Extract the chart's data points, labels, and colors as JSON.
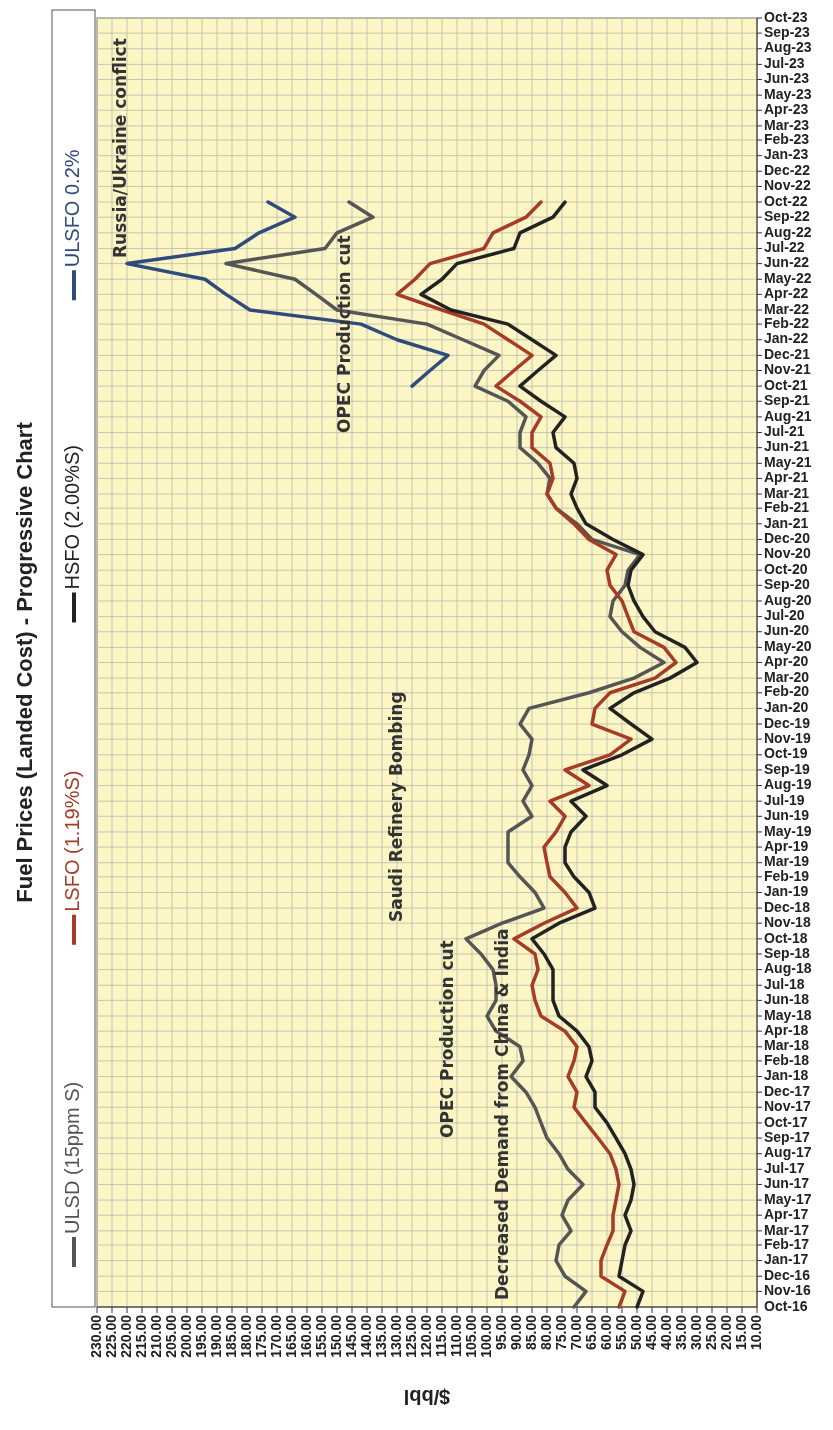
{
  "chart_data": {
    "type": "line",
    "title": "Fuel Prices (Landed Cost) - Progressive Chart",
    "x": [
      "2016-10",
      "2016-11",
      "2016-12",
      "2017-01",
      "2017-02",
      "2017-03",
      "2017-04",
      "2017-05",
      "2017-06",
      "2017-07",
      "2017-08",
      "2017-09",
      "2017-10",
      "2017-11",
      "2017-12",
      "2018-01",
      "2018-02",
      "2018-03",
      "2018-04",
      "2018-05",
      "2018-06",
      "2018-07",
      "2018-08",
      "2018-09",
      "2018-10",
      "2018-11",
      "2018-12",
      "2019-01",
      "2019-02",
      "2019-03",
      "2019-04",
      "2019-05",
      "2019-06",
      "2019-07",
      "2019-08",
      "2019-09",
      "2019-10",
      "2019-11",
      "2019-12",
      "2020-01",
      "2020-02",
      "2020-03",
      "2020-04",
      "2020-05",
      "2020-06",
      "2020-07",
      "2020-08",
      "2020-09",
      "2020-10",
      "2020-11",
      "2020-12",
      "2021-01",
      "2021-02",
      "2021-03",
      "2021-04",
      "2021-05",
      "2021-06",
      "2021-07",
      "2021-08",
      "2021-09",
      "2021-10",
      "2021-11",
      "2021-12",
      "2022-01",
      "2022-02",
      "2022-03",
      "2022-04",
      "2022-05",
      "2022-06",
      "2022-07",
      "2022-08",
      "2022-09",
      "2022-10"
    ],
    "series": [
      {
        "name": "ULSD (15ppm S)",
        "color": "#555555",
        "values": [
          71,
          67,
          74,
          77,
          76,
          72,
          75,
          73,
          68,
          73,
          76,
          80,
          82,
          84,
          87,
          92,
          88,
          89,
          97,
          100,
          97,
          97,
          98,
          102,
          107,
          95,
          81,
          84,
          89,
          93,
          93,
          93,
          85,
          88,
          85,
          88,
          86,
          85,
          89,
          86,
          66,
          51,
          41,
          49,
          55,
          59,
          58,
          54,
          53,
          49,
          65,
          70,
          77,
          80,
          79,
          83,
          89,
          89,
          87,
          93,
          104,
          101,
          96,
          108,
          120,
          150,
          157,
          164,
          187,
          154,
          150,
          138,
          146
        ]
      },
      {
        "name": "LSFO (1.19%S)",
        "color": "#a63b27",
        "values": [
          56,
          54,
          62,
          62,
          60,
          58,
          58,
          57,
          56,
          57,
          59,
          63,
          67,
          71,
          70,
          73,
          71,
          70,
          74,
          82,
          84,
          85,
          83,
          84,
          91,
          81,
          70,
          74,
          79,
          80,
          81,
          77,
          74,
          79,
          66,
          74,
          59,
          52,
          65,
          64,
          59,
          44,
          37,
          41,
          51,
          53,
          55,
          59,
          60,
          57,
          66,
          71,
          77,
          80,
          78,
          79,
          85,
          85,
          82,
          89,
          97,
          91,
          85,
          93,
          101,
          115,
          130,
          124,
          119,
          101,
          98,
          87,
          82
        ]
      },
      {
        "name": "HSFO (2.00%S)",
        "color": "#222222",
        "values": [
          50,
          48,
          56,
          55,
          54,
          52,
          54,
          52,
          51,
          52,
          54,
          57,
          60,
          64,
          64,
          67,
          65,
          66,
          70,
          76,
          78,
          78,
          78,
          81,
          85,
          76,
          64,
          66,
          71,
          74,
          74,
          72,
          67,
          72,
          60,
          68,
          55,
          45,
          52,
          59,
          51,
          39,
          30,
          34,
          44,
          48,
          51,
          53,
          52,
          48,
          58,
          67,
          70,
          72,
          70,
          71,
          77,
          78,
          74,
          82,
          89,
          83,
          77,
          85,
          93,
          112,
          122,
          115,
          110,
          91,
          89,
          78,
          74
        ]
      },
      {
        "name": "ULSFO 0.2%",
        "color": "#2f4b7c",
        "x": [
          "2021-10",
          "2021-11",
          "2021-12",
          "2022-01",
          "2022-02",
          "2022-03",
          "2022-04",
          "2022-05",
          "2022-06",
          "2022-07",
          "2022-08",
          "2022-09",
          "2022-10"
        ],
        "values": [
          125,
          119,
          113,
          130,
          142,
          179,
          187,
          194,
          220,
          184,
          176,
          164,
          173
        ]
      }
    ],
    "orientation": "horizontal",
    "xlabel": "$/bbl",
    "ylim": [
      "2016-10",
      "2023-10"
    ],
    "yticks": [
      {
        "value": "2016-10",
        "label": "Oct-16"
      },
      {
        "value": "2016-11",
        "label": "Nov-16"
      },
      {
        "value": "2016-12",
        "label": "Dec-16"
      },
      {
        "value": "2017-01",
        "label": "Jan-17"
      },
      {
        "value": "2017-02",
        "label": "Feb-17"
      },
      {
        "value": "2017-03",
        "label": "Mar-17"
      },
      {
        "value": "2017-04",
        "label": "Apr-17"
      },
      {
        "value": "2017-05",
        "label": "May-17"
      },
      {
        "value": "2017-06",
        "label": "Jun-17"
      },
      {
        "value": "2017-07",
        "label": "Jul-17"
      },
      {
        "value": "2017-08",
        "label": "Aug-17"
      },
      {
        "value": "2017-09",
        "label": "Sep-17"
      },
      {
        "value": "2017-10",
        "label": "Oct-17"
      },
      {
        "value": "2017-11",
        "label": "Nov-17"
      },
      {
        "value": "2017-12",
        "label": "Dec-17"
      },
      {
        "value": "2018-01",
        "label": "Jan-18"
      },
      {
        "value": "2018-02",
        "label": "Feb-18"
      },
      {
        "value": "2018-03",
        "label": "Mar-18"
      },
      {
        "value": "2018-04",
        "label": "Apr-18"
      },
      {
        "value": "2018-05",
        "label": "May-18"
      },
      {
        "value": "2018-06",
        "label": "Jun-18"
      },
      {
        "value": "2018-07",
        "label": "Jul-18"
      },
      {
        "value": "2018-08",
        "label": "Aug-18"
      },
      {
        "value": "2018-09",
        "label": "Sep-18"
      },
      {
        "value": "2018-10",
        "label": "Oct-18"
      },
      {
        "value": "2018-11",
        "label": "Nov-18"
      },
      {
        "value": "2018-12",
        "label": "Dec-18"
      },
      {
        "value": "2019-01",
        "label": "Jan-19"
      },
      {
        "value": "2019-02",
        "label": "Feb-19"
      },
      {
        "value": "2019-03",
        "label": "Mar-19"
      },
      {
        "value": "2019-04",
        "label": "Apr-19"
      },
      {
        "value": "2019-05",
        "label": "May-19"
      },
      {
        "value": "2019-06",
        "label": "Jun-19"
      },
      {
        "value": "2019-07",
        "label": "Jul-19"
      },
      {
        "value": "2019-08",
        "label": "Aug-19"
      },
      {
        "value": "2019-09",
        "label": "Sep-19"
      },
      {
        "value": "2019-10",
        "label": "Oct-19"
      },
      {
        "value": "2019-11",
        "label": "Nov-19"
      },
      {
        "value": "2019-12",
        "label": "Dec-19"
      },
      {
        "value": "2020-01",
        "label": "Jan-20"
      },
      {
        "value": "2020-02",
        "label": "Feb-20"
      },
      {
        "value": "2020-03",
        "label": "Mar-20"
      },
      {
        "value": "2020-04",
        "label": "Apr-20"
      },
      {
        "value": "2020-05",
        "label": "May-20"
      },
      {
        "value": "2020-06",
        "label": "Jun-20"
      },
      {
        "value": "2020-07",
        "label": "Jul-20"
      },
      {
        "value": "2020-08",
        "label": "Aug-20"
      },
      {
        "value": "2020-09",
        "label": "Sep-20"
      },
      {
        "value": "2020-10",
        "label": "Oct-20"
      },
      {
        "value": "2020-11",
        "label": "Nov-20"
      },
      {
        "value": "2020-12",
        "label": "Dec-20"
      },
      {
        "value": "2021-01",
        "label": "Jan-21"
      },
      {
        "value": "2021-02",
        "label": "Feb-21"
      },
      {
        "value": "2021-03",
        "label": "Mar-21"
      },
      {
        "value": "2021-04",
        "label": "Apr-21"
      },
      {
        "value": "2021-05",
        "label": "May-21"
      },
      {
        "value": "2021-06",
        "label": "Jun-21"
      },
      {
        "value": "2021-07",
        "label": "Jul-21"
      },
      {
        "value": "2021-08",
        "label": "Aug-21"
      },
      {
        "value": "2021-09",
        "label": "Sep-21"
      },
      {
        "value": "2021-10",
        "label": "Oct-21"
      },
      {
        "value": "2021-11",
        "label": "Nov-21"
      },
      {
        "value": "2021-12",
        "label": "Dec-21"
      },
      {
        "value": "2022-01",
        "label": "Jan-22"
      },
      {
        "value": "2022-02",
        "label": "Feb-22"
      },
      {
        "value": "2022-03",
        "label": "Mar-22"
      },
      {
        "value": "2022-04",
        "label": "Apr-22"
      },
      {
        "value": "2022-05",
        "label": "May-22"
      },
      {
        "value": "2022-06",
        "label": "Jun-22"
      },
      {
        "value": "2022-07",
        "label": "Jul-22"
      },
      {
        "value": "2022-08",
        "label": "Aug-22"
      },
      {
        "value": "2022-09",
        "label": "Sep-22"
      },
      {
        "value": "2022-10",
        "label": "Oct-22"
      },
      {
        "value": "2022-11",
        "label": "Nov-22"
      },
      {
        "value": "2022-12",
        "label": "Dec-22"
      },
      {
        "value": "2023-01",
        "label": "Jan-23"
      },
      {
        "value": "2023-02",
        "label": "Feb-23"
      },
      {
        "value": "2023-03",
        "label": "Mar-23"
      },
      {
        "value": "2023-04",
        "label": "Apr-23"
      },
      {
        "value": "2023-05",
        "label": "May-23"
      },
      {
        "value": "2023-06",
        "label": "Jun-23"
      },
      {
        "value": "2023-07",
        "label": "Jul-23"
      },
      {
        "value": "2023-08",
        "label": "Aug-23"
      },
      {
        "value": "2023-09",
        "label": "Sep-23"
      },
      {
        "value": "2023-10",
        "label": "Oct-23"
      }
    ],
    "xlim": [
      230,
      10
    ],
    "xticks": [
      {
        "value": 10,
        "label": "10.00"
      },
      {
        "value": 15,
        "label": "15.00"
      },
      {
        "value": 20,
        "label": "20.00"
      },
      {
        "value": 25,
        "label": "25.00"
      },
      {
        "value": 30,
        "label": "30.00"
      },
      {
        "value": 35,
        "label": "35.00"
      },
      {
        "value": 40,
        "label": "40.00"
      },
      {
        "value": 45,
        "label": "45.00"
      },
      {
        "value": 50,
        "label": "50.00"
      },
      {
        "value": 55,
        "label": "55.00"
      },
      {
        "value": 60,
        "label": "60.00"
      },
      {
        "value": 65,
        "label": "65.00"
      },
      {
        "value": 70,
        "label": "70.00"
      },
      {
        "value": 75,
        "label": "75.00"
      },
      {
        "value": 80,
        "label": "80.00"
      },
      {
        "value": 85,
        "label": "85.00"
      },
      {
        "value": 90,
        "label": "90.00"
      },
      {
        "value": 95,
        "label": "95.00"
      },
      {
        "value": 100,
        "label": "100.00"
      },
      {
        "value": 105,
        "label": "105.00"
      },
      {
        "value": 110,
        "label": "110.00"
      },
      {
        "value": 115,
        "label": "115.00"
      },
      {
        "value": 120,
        "label": "120.00"
      },
      {
        "value": 125,
        "label": "125.00"
      },
      {
        "value": 130,
        "label": "130.00"
      },
      {
        "value": 135,
        "label": "135.00"
      },
      {
        "value": 140,
        "label": "140.00"
      },
      {
        "value": 145,
        "label": "145.00"
      },
      {
        "value": 150,
        "label": "150.00"
      },
      {
        "value": 155,
        "label": "155.00"
      },
      {
        "value": 160,
        "label": "160.00"
      },
      {
        "value": 165,
        "label": "165.00"
      },
      {
        "value": 170,
        "label": "170.00"
      },
      {
        "value": 175,
        "label": "175.00"
      },
      {
        "value": 180,
        "label": "180.00"
      },
      {
        "value": 185,
        "label": "185.00"
      },
      {
        "value": 190,
        "label": "190.00"
      },
      {
        "value": 195,
        "label": "195.00"
      },
      {
        "value": 200,
        "label": "200.00"
      },
      {
        "value": 205,
        "label": "205.00"
      },
      {
        "value": 210,
        "label": "210.00"
      },
      {
        "value": 215,
        "label": "215.00"
      },
      {
        "value": 220,
        "label": "220.00"
      },
      {
        "value": 225,
        "label": "225.00"
      },
      {
        "value": 230,
        "label": "230.00"
      }
    ],
    "grid": true,
    "legend": "left",
    "marker": "none",
    "line_style": "solid",
    "annotations": [
      "Russia/Ukraine conflict",
      "OPEC Production cut",
      "Saudi Refinery Bombing",
      "OPEC Production cut",
      "Decreased Demand from China & India"
    ]
  }
}
